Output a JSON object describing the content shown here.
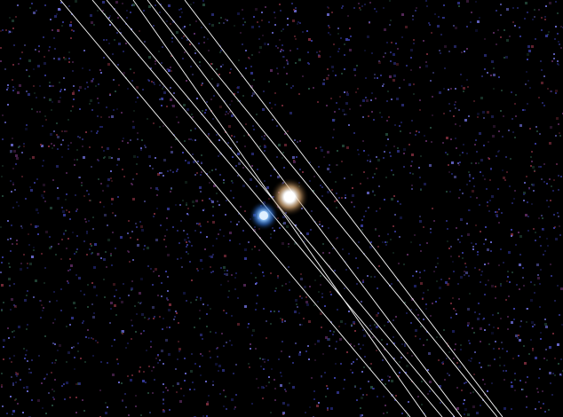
{
  "image": {
    "background_color": "#000000",
    "noise_colors": [
      "#2a2d7a",
      "#3b3fa8",
      "#5a2a5e",
      "#7a2b3a",
      "#244a3a",
      "#1e2266",
      "#6a6ad0"
    ],
    "line_color": "#ffffff",
    "sources": [
      {
        "name": "white-source",
        "core_color": "#ffffff",
        "halo_color": "#d0a070",
        "intensity": 1.0
      },
      {
        "name": "blue-source",
        "core_color": "#bfe0ff",
        "halo_color": "#2f7fd6",
        "intensity": 0.85
      }
    ],
    "line_count": 7
  }
}
